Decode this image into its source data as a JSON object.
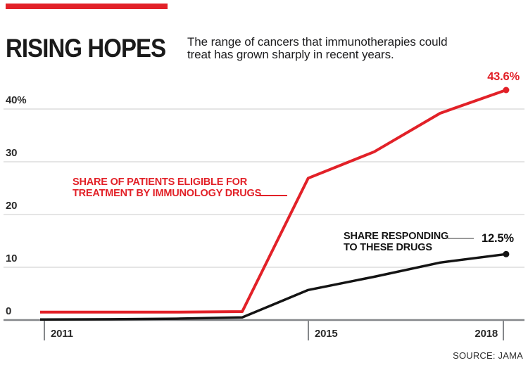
{
  "header": {
    "title": "RISING HOPES",
    "subtitle_line1": "The range of cancers that immunotherapies could",
    "subtitle_line2": "treat has grown sharply in recent years."
  },
  "colors": {
    "accent_red": "#e22128",
    "line_black": "#141414",
    "grid_gray": "#d5d5d5",
    "axis_gray": "#85878a",
    "leader_gray": "#9a9a9a"
  },
  "chart_data": {
    "type": "line",
    "x": [
      2011,
      2012,
      2013,
      2014,
      2015,
      2016,
      2017,
      2018
    ],
    "series": [
      {
        "name": "Share of patients eligible for treatment by immunology drugs",
        "color": "#e22128",
        "values": [
          1.5,
          1.5,
          1.5,
          1.6,
          26.9,
          31.9,
          39.2,
          43.6
        ],
        "end_label": "43.6%"
      },
      {
        "name": "Share responding to these drugs",
        "color": "#141414",
        "values": [
          0.1,
          0.15,
          0.25,
          0.5,
          5.7,
          8.2,
          10.9,
          12.5
        ],
        "end_label": "12.5%"
      }
    ],
    "ytick_values": [
      0,
      10,
      20,
      30,
      40
    ],
    "ytick_labels": [
      "0",
      "10",
      "20",
      "30",
      "40%"
    ],
    "xtick_values": [
      2011,
      2015,
      2018
    ],
    "xtick_labels": [
      "2011",
      "2015",
      "2018"
    ],
    "ylim": [
      0,
      45
    ],
    "grid": "horizontal",
    "legend_position": "inline-annotations",
    "annotations": {
      "eligible_line1": "SHARE OF PATIENTS ELIGIBLE FOR",
      "eligible_line2": "TREATMENT BY IMMUNOLOGY DRUGS",
      "responding_line1": "SHARE RESPONDING",
      "responding_line2": "TO THESE DRUGS"
    },
    "source": "SOURCE: JAMA"
  }
}
